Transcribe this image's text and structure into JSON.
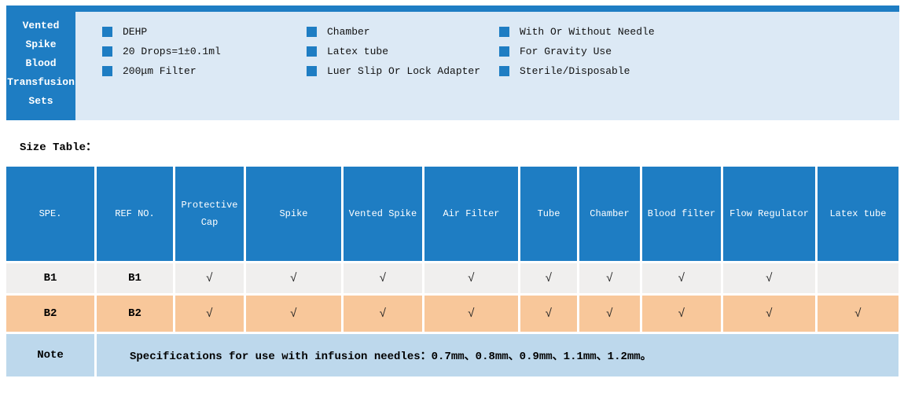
{
  "colors": {
    "accent_blue": "#1e7dc3",
    "panel_light_blue": "#dce9f5",
    "row_b1_gray": "#f0efee",
    "row_b2_orange": "#f8c79a",
    "note_blue": "#bdd8ec"
  },
  "product": {
    "title_lines": [
      "Vented",
      "Spike",
      "Blood",
      "Transfusion",
      "Sets"
    ],
    "features": {
      "col1": [
        "DEHP",
        "20 Drops=1±0.1ml",
        "200μm Filter"
      ],
      "col2": [
        "Chamber",
        "Latex tube",
        "Luer Slip Or Lock Adapter"
      ],
      "col3": [
        "With Or Without Needle",
        "For Gravity Use",
        "Sterile/Disposable"
      ]
    }
  },
  "size_table": {
    "label": "Size Table：",
    "headers": [
      "SPE.",
      "REF NO.",
      "Protective Cap",
      "Spike",
      "Vented Spike",
      "Air Filter",
      "Tube",
      "Chamber",
      "Blood filter",
      "Flow Regulator",
      "Latex tube"
    ],
    "rows": [
      {
        "spe": "B1",
        "ref": "B1",
        "checks": [
          "√",
          "√",
          "√",
          "√",
          "√",
          "√",
          "√",
          "√",
          ""
        ]
      },
      {
        "spe": "B2",
        "ref": "B2",
        "checks": [
          "√",
          "√",
          "√",
          "√",
          "√",
          "√",
          "√",
          "√",
          "√"
        ]
      }
    ],
    "note": {
      "label": "Note",
      "text": "Specifications for use with infusion needles：0.7mm、0.8mm、0.9mm、1.1mm、1.2mm。"
    }
  }
}
